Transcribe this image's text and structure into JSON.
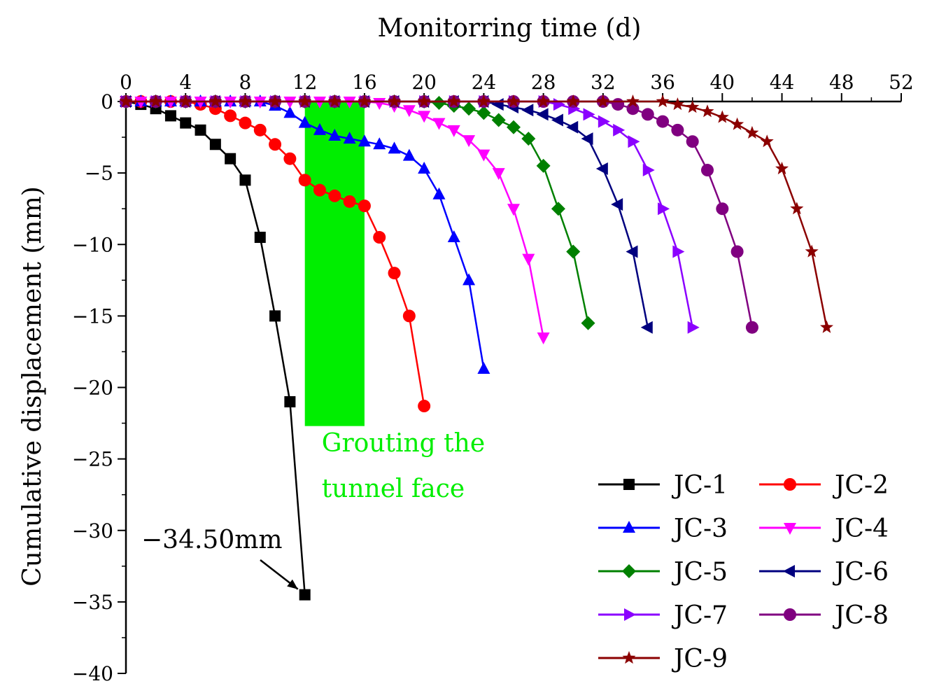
{
  "chart_data": {
    "type": "line",
    "xlabel": "Monitorring time (d)",
    "ylabel": "Cumulative displacement (mm)",
    "xlim": [
      0,
      52
    ],
    "ylim": [
      -40,
      0
    ],
    "xticks": [
      0,
      4,
      8,
      12,
      16,
      20,
      24,
      28,
      32,
      36,
      40,
      44,
      48,
      52
    ],
    "yticks": [
      0,
      -5,
      -10,
      -15,
      -20,
      -25,
      -30,
      -35,
      -40
    ],
    "x_axis_position": "top",
    "shaded_region": {
      "x_range": [
        12,
        16
      ],
      "y_range": [
        0,
        -22.7
      ],
      "label_lines": [
        "Grouting the",
        "tunnel face"
      ],
      "color": "#00ee00"
    },
    "annotation": {
      "text": "−34.50mm",
      "target": [
        12,
        -34.5
      ]
    },
    "legend_position": "bottom-right",
    "series": [
      {
        "name": "JC-1",
        "color": "#000000",
        "marker": "square",
        "points": [
          [
            0,
            0
          ],
          [
            1,
            -0.2
          ],
          [
            2,
            -0.5
          ],
          [
            3,
            -1.0
          ],
          [
            4,
            -1.5
          ],
          [
            5,
            -2.0
          ],
          [
            6,
            -3.0
          ],
          [
            7,
            -4.0
          ],
          [
            8,
            -5.5
          ],
          [
            9,
            -9.5
          ],
          [
            10,
            -15
          ],
          [
            11,
            -21
          ],
          [
            12,
            -34.5
          ]
        ]
      },
      {
        "name": "JC-2",
        "color": "#ff0000",
        "marker": "circle",
        "points": [
          [
            0,
            0
          ],
          [
            1,
            0
          ],
          [
            2,
            0
          ],
          [
            3,
            0
          ],
          [
            4,
            0
          ],
          [
            5,
            -0.2
          ],
          [
            6,
            -0.5
          ],
          [
            7,
            -1.0
          ],
          [
            8,
            -1.5
          ],
          [
            9,
            -2.0
          ],
          [
            10,
            -3.0
          ],
          [
            11,
            -4.0
          ],
          [
            12,
            -5.5
          ],
          [
            13,
            -6.2
          ],
          [
            14,
            -6.6
          ],
          [
            15,
            -7.0
          ],
          [
            16,
            -7.3
          ],
          [
            17,
            -9.5
          ],
          [
            18,
            -12
          ],
          [
            19,
            -15
          ],
          [
            20,
            -21.3
          ]
        ]
      },
      {
        "name": "JC-3",
        "color": "#0000ff",
        "marker": "triangle-up",
        "points": [
          [
            0,
            0
          ],
          [
            1,
            0
          ],
          [
            2,
            0
          ],
          [
            3,
            0
          ],
          [
            4,
            0
          ],
          [
            5,
            0
          ],
          [
            6,
            0
          ],
          [
            7,
            0
          ],
          [
            8,
            0
          ],
          [
            9,
            0
          ],
          [
            10,
            -0.3
          ],
          [
            11,
            -0.8
          ],
          [
            12,
            -1.5
          ],
          [
            13,
            -2.0
          ],
          [
            14,
            -2.4
          ],
          [
            15,
            -2.6
          ],
          [
            16,
            -2.8
          ],
          [
            17,
            -3.0
          ],
          [
            18,
            -3.3
          ],
          [
            19,
            -3.8
          ],
          [
            20,
            -4.7
          ],
          [
            21,
            -6.5
          ],
          [
            22,
            -9.5
          ],
          [
            23,
            -12.5
          ],
          [
            24,
            -18.7
          ]
        ]
      },
      {
        "name": "JC-4",
        "color": "#ff00ff",
        "marker": "triangle-down",
        "points": [
          [
            0,
            0
          ],
          [
            1,
            0
          ],
          [
            2,
            0
          ],
          [
            3,
            0
          ],
          [
            4,
            0
          ],
          [
            5,
            0
          ],
          [
            6,
            0
          ],
          [
            7,
            0
          ],
          [
            8,
            0
          ],
          [
            9,
            0
          ],
          [
            10,
            0
          ],
          [
            11,
            0
          ],
          [
            12,
            0
          ],
          [
            13,
            0
          ],
          [
            14,
            0
          ],
          [
            15,
            0
          ],
          [
            16,
            0
          ],
          [
            17,
            -0.1
          ],
          [
            18,
            -0.3
          ],
          [
            19,
            -0.6
          ],
          [
            20,
            -1.0
          ],
          [
            21,
            -1.5
          ],
          [
            22,
            -2.0
          ],
          [
            23,
            -2.7
          ],
          [
            24,
            -3.7
          ],
          [
            25,
            -5.0
          ],
          [
            26,
            -7.5
          ],
          [
            27,
            -11
          ],
          [
            28,
            -16.5
          ]
        ]
      },
      {
        "name": "JC-5",
        "color": "#008000",
        "marker": "diamond",
        "points": [
          [
            0,
            0
          ],
          [
            2,
            0
          ],
          [
            4,
            0
          ],
          [
            6,
            0
          ],
          [
            8,
            0
          ],
          [
            10,
            0
          ],
          [
            12,
            0
          ],
          [
            14,
            0
          ],
          [
            16,
            0
          ],
          [
            18,
            0
          ],
          [
            20,
            0
          ],
          [
            21,
            -0.1
          ],
          [
            22,
            -0.3
          ],
          [
            23,
            -0.5
          ],
          [
            24,
            -0.8
          ],
          [
            25,
            -1.3
          ],
          [
            26,
            -1.8
          ],
          [
            27,
            -2.6
          ],
          [
            28,
            -4.5
          ],
          [
            29,
            -7.5
          ],
          [
            30,
            -10.5
          ],
          [
            31,
            -15.5
          ]
        ]
      },
      {
        "name": "JC-6",
        "color": "#00007f",
        "marker": "triangle-left",
        "points": [
          [
            0,
            0
          ],
          [
            2,
            0
          ],
          [
            4,
            0
          ],
          [
            6,
            0
          ],
          [
            8,
            0
          ],
          [
            10,
            0
          ],
          [
            12,
            0
          ],
          [
            14,
            0
          ],
          [
            16,
            0
          ],
          [
            18,
            0
          ],
          [
            20,
            0
          ],
          [
            22,
            0
          ],
          [
            24,
            0
          ],
          [
            25,
            -0.2
          ],
          [
            26,
            -0.4
          ],
          [
            27,
            -0.6
          ],
          [
            28,
            -0.9
          ],
          [
            29,
            -1.3
          ],
          [
            30,
            -1.8
          ],
          [
            31,
            -2.6
          ],
          [
            32,
            -4.7
          ],
          [
            33,
            -7.2
          ],
          [
            34,
            -10.5
          ],
          [
            35,
            -15.8
          ]
        ]
      },
      {
        "name": "JC-7",
        "color": "#8b00ff",
        "marker": "triangle-right",
        "points": [
          [
            0,
            0
          ],
          [
            2,
            0
          ],
          [
            4,
            0
          ],
          [
            6,
            0
          ],
          [
            8,
            0
          ],
          [
            10,
            0
          ],
          [
            12,
            0
          ],
          [
            14,
            0
          ],
          [
            16,
            0
          ],
          [
            18,
            0
          ],
          [
            20,
            0
          ],
          [
            22,
            0
          ],
          [
            24,
            0
          ],
          [
            26,
            0
          ],
          [
            28,
            0
          ],
          [
            29,
            -0.2
          ],
          [
            30,
            -0.5
          ],
          [
            31,
            -0.9
          ],
          [
            32,
            -1.4
          ],
          [
            33,
            -2.0
          ],
          [
            34,
            -2.8
          ],
          [
            35,
            -4.8
          ],
          [
            36,
            -7.5
          ],
          [
            37,
            -10.5
          ],
          [
            38,
            -15.8
          ]
        ]
      },
      {
        "name": "JC-8",
        "color": "#800080",
        "marker": "circle",
        "points": [
          [
            0,
            0
          ],
          [
            2,
            0
          ],
          [
            4,
            0
          ],
          [
            6,
            0
          ],
          [
            8,
            0
          ],
          [
            10,
            0
          ],
          [
            12,
            0
          ],
          [
            14,
            0
          ],
          [
            16,
            0
          ],
          [
            18,
            0
          ],
          [
            20,
            0
          ],
          [
            22,
            0
          ],
          [
            24,
            0
          ],
          [
            26,
            0
          ],
          [
            28,
            0
          ],
          [
            30,
            0
          ],
          [
            32,
            0
          ],
          [
            33,
            -0.2
          ],
          [
            34,
            -0.5
          ],
          [
            35,
            -0.9
          ],
          [
            36,
            -1.4
          ],
          [
            37,
            -2.0
          ],
          [
            38,
            -2.8
          ],
          [
            39,
            -4.8
          ],
          [
            40,
            -7.5
          ],
          [
            41,
            -10.5
          ],
          [
            42,
            -15.8
          ]
        ]
      },
      {
        "name": "JC-9",
        "color": "#8b0000",
        "marker": "star",
        "points": [
          [
            0,
            0
          ],
          [
            2,
            0
          ],
          [
            4,
            0
          ],
          [
            6,
            0
          ],
          [
            8,
            0
          ],
          [
            10,
            0
          ],
          [
            12,
            0
          ],
          [
            14,
            0
          ],
          [
            16,
            0
          ],
          [
            18,
            0
          ],
          [
            20,
            0
          ],
          [
            22,
            0
          ],
          [
            24,
            0
          ],
          [
            26,
            0
          ],
          [
            28,
            0
          ],
          [
            30,
            0
          ],
          [
            32,
            0
          ],
          [
            34,
            0
          ],
          [
            36,
            0
          ],
          [
            37,
            -0.2
          ],
          [
            38,
            -0.4
          ],
          [
            39,
            -0.7
          ],
          [
            40,
            -1.1
          ],
          [
            41,
            -1.6
          ],
          [
            42,
            -2.2
          ],
          [
            43,
            -2.8
          ],
          [
            44,
            -4.7
          ],
          [
            45,
            -7.5
          ],
          [
            46,
            -10.5
          ],
          [
            47,
            -15.8
          ]
        ]
      }
    ]
  }
}
